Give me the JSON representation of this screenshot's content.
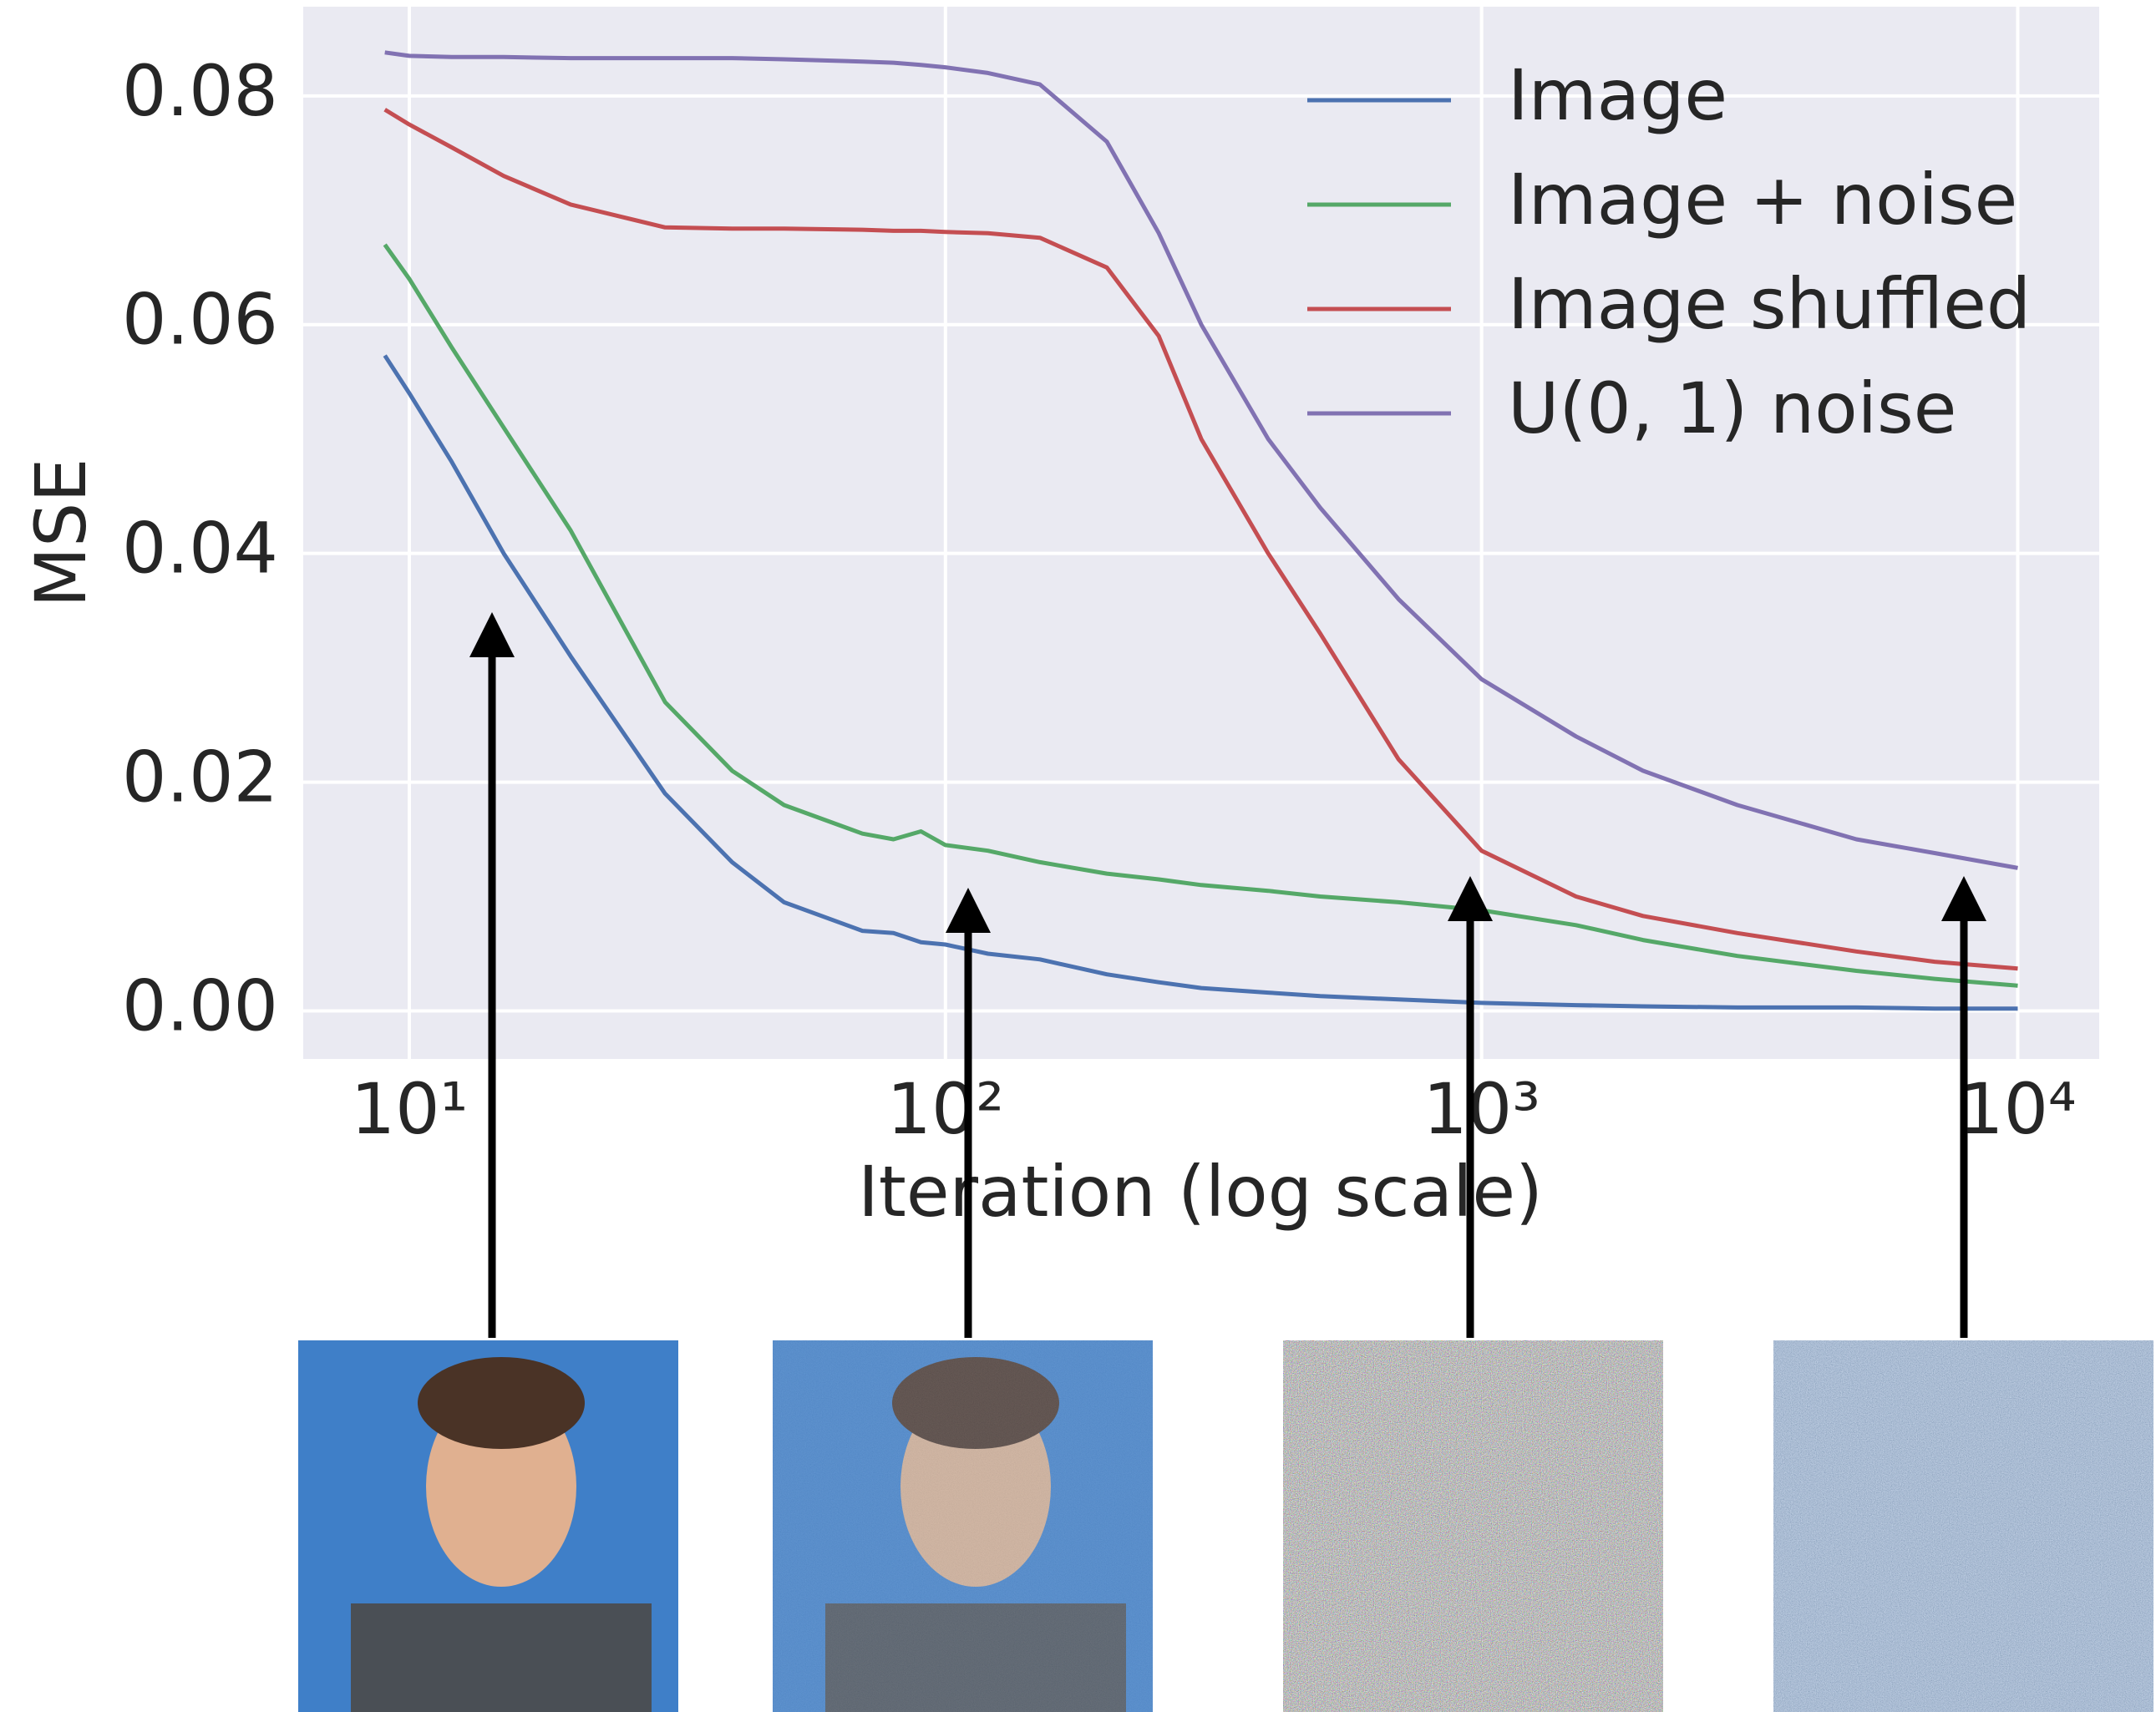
{
  "chart_data": {
    "type": "line",
    "xlabel": "Iteration (log scale)",
    "ylabel": "MSE",
    "x_scale": "log",
    "grid": true,
    "legend": "upper right",
    "x": [
      9,
      10,
      12,
      15,
      20,
      30,
      40,
      50,
      70,
      80,
      90,
      100,
      120,
      150,
      200,
      250,
      300,
      400,
      500,
      700,
      1000,
      1500,
      2000,
      3000,
      5000,
      7000,
      10000
    ],
    "series": [
      {
        "name": "Image",
        "color": "#4c72b0",
        "values": [
          0.0573,
          0.054,
          0.048,
          0.04,
          0.031,
          0.019,
          0.013,
          0.0095,
          0.007,
          0.0068,
          0.006,
          0.0058,
          0.005,
          0.0045,
          0.0032,
          0.0025,
          0.002,
          0.0016,
          0.0013,
          0.001,
          0.0007,
          0.0005,
          0.0004,
          0.0003,
          0.0003,
          0.0002,
          0.0002
        ]
      },
      {
        "name": "Image + noise",
        "color": "#55a868",
        "values": [
          0.067,
          0.064,
          0.058,
          0.051,
          0.042,
          0.027,
          0.021,
          0.018,
          0.0155,
          0.015,
          0.0157,
          0.0145,
          0.014,
          0.013,
          0.012,
          0.0115,
          0.011,
          0.0105,
          0.01,
          0.0095,
          0.0088,
          0.0075,
          0.0062,
          0.0048,
          0.0035,
          0.0028,
          0.0022
        ]
      },
      {
        "name": "Image shuffled",
        "color": "#c44e52",
        "values": [
          0.0788,
          0.0775,
          0.0755,
          0.073,
          0.0705,
          0.0685,
          0.0684,
          0.0684,
          0.0683,
          0.0682,
          0.0682,
          0.0681,
          0.068,
          0.0676,
          0.065,
          0.059,
          0.05,
          0.04,
          0.033,
          0.022,
          0.014,
          0.01,
          0.0083,
          0.0068,
          0.0052,
          0.0043,
          0.0037
        ]
      },
      {
        "name": "U(0, 1) noise",
        "color": "#8172b2",
        "values": [
          0.0838,
          0.0835,
          0.0834,
          0.0834,
          0.0833,
          0.0833,
          0.0833,
          0.0832,
          0.083,
          0.0829,
          0.0827,
          0.0825,
          0.082,
          0.081,
          0.076,
          0.068,
          0.06,
          0.05,
          0.044,
          0.036,
          0.029,
          0.024,
          0.021,
          0.018,
          0.015,
          0.0138,
          0.0125
        ]
      }
    ],
    "xlim": [
      6.34,
      14190
    ],
    "ylim": [
      -0.0042,
      0.0878
    ],
    "xticks": [
      {
        "value": 10,
        "label": "10¹"
      },
      {
        "value": 100,
        "label": "10²"
      },
      {
        "value": 1000,
        "label": "10³"
      },
      {
        "value": 10000,
        "label": "10⁴"
      }
    ],
    "yticks": [
      {
        "value": 0,
        "label": "0.00"
      },
      {
        "value": 0.02,
        "label": "0.02"
      },
      {
        "value": 0.04,
        "label": "0.04"
      },
      {
        "value": 0.06,
        "label": "0.06"
      },
      {
        "value": 0.08,
        "label": "0.08"
      }
    ]
  }
}
